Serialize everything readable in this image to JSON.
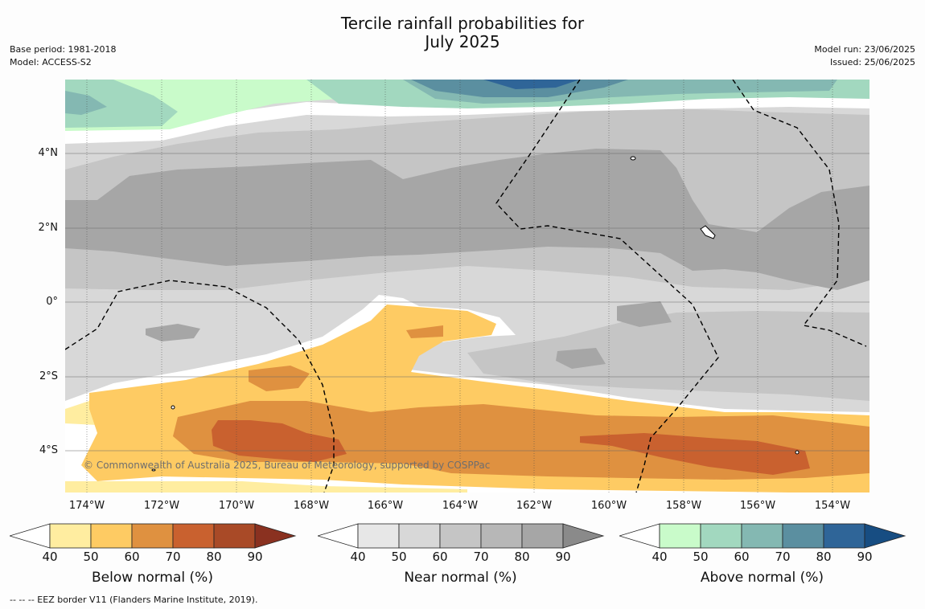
{
  "title_line1": "Tercile rainfall probabilities for",
  "title_line2": "July 2025",
  "base_period": "Base period: 1981-2018",
  "model": "Model: ACCESS-S2",
  "model_run": "Model run: 23/06/2025",
  "issued": "Issued: 25/06/2025",
  "copyright": "© Commonwealth of Australia 2025, Bureau of Meteorology, supported by COSPPac",
  "footnote": "--  --  -- EEZ border V11 (Flanders Marine Institute, 2019).",
  "lon_ticks": [
    "174°W",
    "172°W",
    "170°W",
    "168°W",
    "166°W",
    "164°W",
    "162°W",
    "160°W",
    "158°W",
    "156°W",
    "154°W"
  ],
  "lat_ticks": [
    "4°N",
    "2°N",
    "0°",
    "2°S",
    "4°S"
  ],
  "colorbars": [
    {
      "label": "Below normal (%)",
      "ticks": [
        "40",
        "50",
        "60",
        "70",
        "80",
        "90"
      ],
      "colors": [
        "#ffffff",
        "#ffeda0",
        "#fecb63",
        "#df9140",
        "#c9612f",
        "#a94a27",
        "#8a3120"
      ]
    },
    {
      "label": "Near normal (%)",
      "ticks": [
        "40",
        "50",
        "60",
        "70",
        "80",
        "90"
      ],
      "colors": [
        "#ffffff",
        "#e7e7e7",
        "#d8d8d8",
        "#c5c5c5",
        "#b7b7b7",
        "#a6a6a6",
        "#8a8a8a"
      ]
    },
    {
      "label": "Above normal (%)",
      "ticks": [
        "40",
        "50",
        "60",
        "70",
        "80",
        "90"
      ],
      "colors": [
        "#ffffff",
        "#c9fbca",
        "#a2d8bf",
        "#84b8b2",
        "#5b8fa0",
        "#2f6598",
        "#174d82"
      ]
    }
  ]
}
